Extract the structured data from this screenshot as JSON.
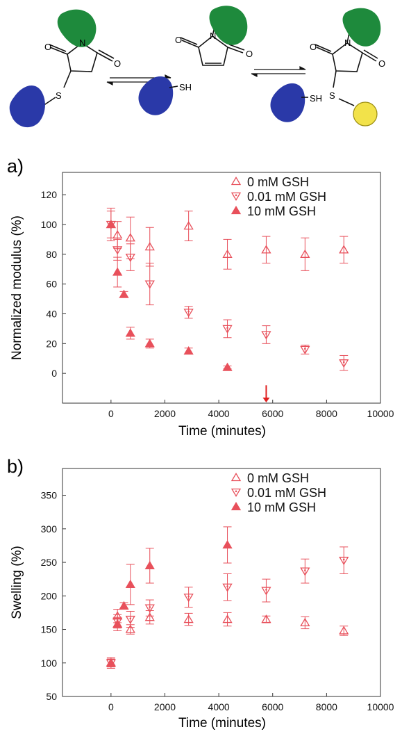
{
  "scheme": {
    "labels": {
      "oxygen": "O",
      "nitrogen": "N",
      "sulfur": "S",
      "thiol": "SH"
    },
    "colors": {
      "green": "#1e8a3c",
      "blue": "#2a39a8",
      "yellow": "#f2e24a"
    }
  },
  "chart_data": [
    {
      "panel_label": "a)",
      "type": "scatter",
      "xlabel": "Time (minutes)",
      "ylabel": "Normalized modulus (%)",
      "xlim": [
        -1800,
        10000
      ],
      "ylim": [
        -20,
        135
      ],
      "xticks": [
        0,
        2000,
        4000,
        6000,
        8000,
        10000
      ],
      "yticks": [
        0,
        20,
        40,
        60,
        80,
        100,
        120
      ],
      "legend_position": "top-right",
      "grid": false,
      "color": "#e8505b",
      "series": [
        {
          "name": "0 mM GSH",
          "marker": "triangle-up-open",
          "points": [
            {
              "x": 0,
              "y": 100,
              "err": 11
            },
            {
              "x": 240,
              "y": 93,
              "err": 9
            },
            {
              "x": 720,
              "y": 91,
              "err": 14
            },
            {
              "x": 1440,
              "y": 85,
              "err": 13
            },
            {
              "x": 2880,
              "y": 99,
              "err": 10
            },
            {
              "x": 4320,
              "y": 80,
              "err": 10
            },
            {
              "x": 5760,
              "y": 83,
              "err": 9
            },
            {
              "x": 7200,
              "y": 80,
              "err": 11
            },
            {
              "x": 8640,
              "y": 83,
              "err": 9
            }
          ]
        },
        {
          "name": "0.01 mM GSH",
          "marker": "triangle-down-open",
          "points": [
            {
              "x": 0,
              "y": 100,
              "err": 9
            },
            {
              "x": 240,
              "y": 83,
              "err": 7
            },
            {
              "x": 720,
              "y": 78,
              "err": 9
            },
            {
              "x": 1440,
              "y": 60,
              "err": 14
            },
            {
              "x": 2880,
              "y": 41,
              "err": 4
            },
            {
              "x": 4320,
              "y": 30,
              "err": 6
            },
            {
              "x": 5760,
              "y": 26,
              "err": 6
            },
            {
              "x": 7200,
              "y": 16,
              "err": 3
            },
            {
              "x": 8640,
              "y": 7,
              "err": 5
            }
          ]
        },
        {
          "name": "10 mM GSH",
          "marker": "triangle-up-filled",
          "points": [
            {
              "x": 0,
              "y": 100,
              "err": 2
            },
            {
              "x": 240,
              "y": 68,
              "err": 10
            },
            {
              "x": 480,
              "y": 53,
              "err": 2
            },
            {
              "x": 720,
              "y": 27,
              "err": 4
            },
            {
              "x": 1440,
              "y": 20,
              "err": 3
            },
            {
              "x": 2880,
              "y": 15,
              "err": 2
            },
            {
              "x": 4320,
              "y": 4,
              "err": 1
            }
          ]
        }
      ],
      "annotations": [
        {
          "type": "arrow-down",
          "x": 5760,
          "y_from": -8,
          "y_to": -20
        }
      ]
    },
    {
      "panel_label": "b)",
      "type": "scatter",
      "xlabel": "Time (minutes)",
      "ylabel": "Swelling (%)",
      "xlim": [
        -1800,
        10000
      ],
      "ylim": [
        50,
        390
      ],
      "xticks": [
        0,
        2000,
        4000,
        6000,
        8000,
        10000
      ],
      "yticks": [
        50,
        100,
        150,
        200,
        250,
        300,
        350
      ],
      "legend_position": "top-right",
      "grid": false,
      "color": "#e8505b",
      "series": [
        {
          "name": "0 mM GSH",
          "marker": "triangle-up-open",
          "points": [
            {
              "x": 0,
              "y": 100,
              "err": 8
            },
            {
              "x": 240,
              "y": 170,
              "err": 10
            },
            {
              "x": 720,
              "y": 150,
              "err": 7
            },
            {
              "x": 1440,
              "y": 168,
              "err": 10
            },
            {
              "x": 2880,
              "y": 165,
              "err": 9
            },
            {
              "x": 4320,
              "y": 165,
              "err": 10
            },
            {
              "x": 5760,
              "y": 165,
              "err": 5
            },
            {
              "x": 7200,
              "y": 160,
              "err": 9
            },
            {
              "x": 8640,
              "y": 148,
              "err": 7
            }
          ]
        },
        {
          "name": "0.01 mM GSH",
          "marker": "triangle-down-open",
          "points": [
            {
              "x": 0,
              "y": 100,
              "err": 6
            },
            {
              "x": 240,
              "y": 162,
              "err": 10
            },
            {
              "x": 720,
              "y": 165,
              "err": 12
            },
            {
              "x": 1440,
              "y": 182,
              "err": 12
            },
            {
              "x": 2880,
              "y": 198,
              "err": 15
            },
            {
              "x": 4320,
              "y": 213,
              "err": 20
            },
            {
              "x": 5760,
              "y": 208,
              "err": 17
            },
            {
              "x": 7200,
              "y": 237,
              "err": 18
            },
            {
              "x": 8640,
              "y": 253,
              "err": 20
            }
          ]
        },
        {
          "name": "10 mM GSH",
          "marker": "triangle-up-filled",
          "points": [
            {
              "x": 0,
              "y": 100,
              "err": 5
            },
            {
              "x": 240,
              "y": 158,
              "err": 10
            },
            {
              "x": 480,
              "y": 185,
              "err": 5
            },
            {
              "x": 720,
              "y": 217,
              "err": 30
            },
            {
              "x": 1440,
              "y": 245,
              "err": 26
            },
            {
              "x": 4320,
              "y": 276,
              "err": 27
            }
          ]
        }
      ]
    }
  ]
}
